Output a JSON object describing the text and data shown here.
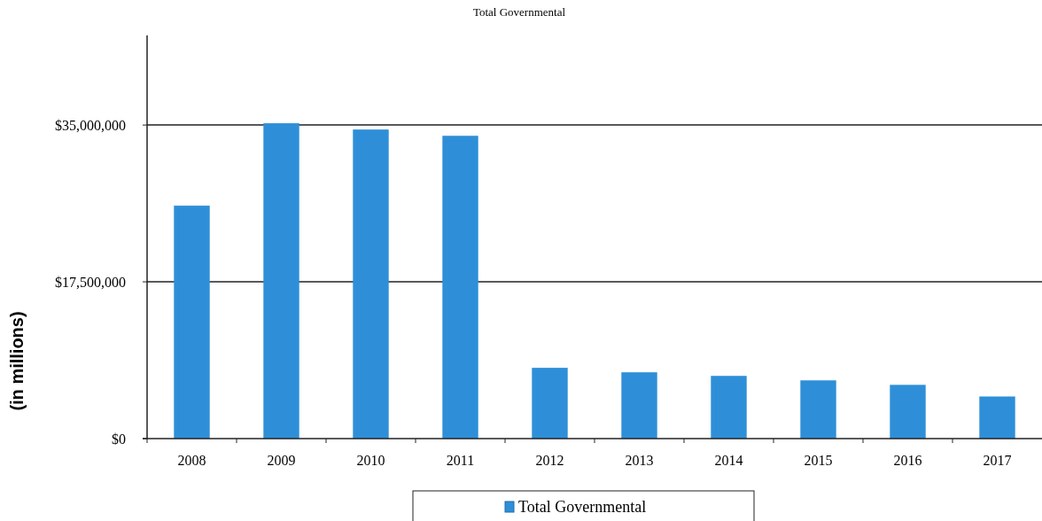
{
  "chart_data": {
    "type": "bar",
    "title": "Total Governmental",
    "ylabel": "(in millions)",
    "categories": [
      "2008",
      "2009",
      "2010",
      "2011",
      "2012",
      "2013",
      "2014",
      "2015",
      "2016",
      "2017"
    ],
    "series": [
      {
        "name": "Total Governmental",
        "color": "#2e8fd8",
        "values": [
          26000000,
          35200000,
          34500000,
          33800000,
          7900000,
          7400000,
          7000000,
          6500000,
          6000000,
          4700000
        ]
      }
    ],
    "ylim": [
      0,
      45000000
    ],
    "yticks": [
      {
        "value": 0,
        "label": "$0"
      },
      {
        "value": 17500000,
        "label": "$17,500,000"
      },
      {
        "value": 35000000,
        "label": "$35,000,000"
      }
    ],
    "grid": "y",
    "legend": "bottom"
  }
}
